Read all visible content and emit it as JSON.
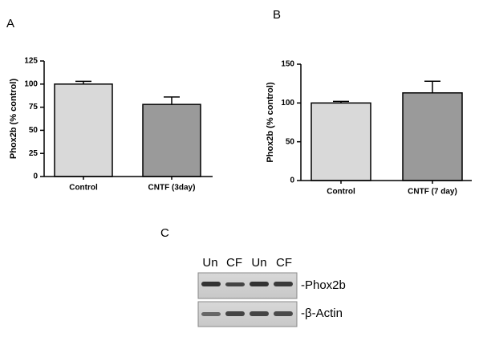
{
  "chart_data": [
    {
      "type": "bar",
      "panel": "A",
      "y_label": "Phox2b (% control)",
      "categories": [
        "Control",
        "CNTF (3day)"
      ],
      "values": [
        100,
        78
      ],
      "errors": [
        3,
        8
      ],
      "colors": [
        "#d9d9d9",
        "#9a9a9a"
      ],
      "ylim": [
        0,
        125
      ],
      "yticks": [
        0,
        25,
        50,
        75,
        100,
        125
      ]
    },
    {
      "type": "bar",
      "panel": "B",
      "y_label": "Phox2b (% control)",
      "categories": [
        "Control",
        "CNTF (7 day)"
      ],
      "values": [
        100,
        113
      ],
      "errors": [
        2,
        15
      ],
      "colors": [
        "#d9d9d9",
        "#9a9a9a"
      ],
      "ylim": [
        0,
        150
      ],
      "yticks": [
        0,
        50,
        100,
        150
      ]
    }
  ],
  "blot": {
    "panel": "C",
    "lanes": [
      "Un",
      "CF",
      "Un",
      "CF"
    ],
    "rows": [
      "-Phox2b",
      "-β-Actin"
    ]
  }
}
